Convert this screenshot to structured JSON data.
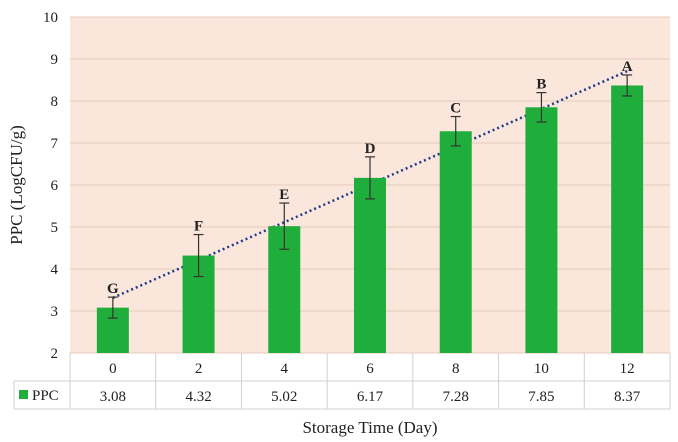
{
  "chart_data": {
    "type": "bar",
    "categories": [
      "0",
      "2",
      "4",
      "6",
      "8",
      "10",
      "12"
    ],
    "series": [
      {
        "name": "PPC",
        "values": [
          3.08,
          4.32,
          5.02,
          6.17,
          7.28,
          7.85,
          8.37
        ],
        "error": [
          0.25,
          0.5,
          0.55,
          0.5,
          0.35,
          0.35,
          0.25
        ],
        "letters": [
          "G",
          "F",
          "E",
          "D",
          "C",
          "B",
          "A"
        ],
        "color": "#1fae3b"
      }
    ],
    "trendline": {
      "type": "linear",
      "style": "dotted",
      "color": "#1f3a8a"
    },
    "ylabel": "PPC (LogCFU/g)",
    "xlabel": "Storage Time (Day)",
    "ylim": [
      2,
      10
    ],
    "yticks": [
      2,
      3,
      4,
      5,
      6,
      7,
      8,
      9,
      10
    ],
    "grid": true,
    "plot_background": "#fbe6dc",
    "legend": "data-table"
  }
}
